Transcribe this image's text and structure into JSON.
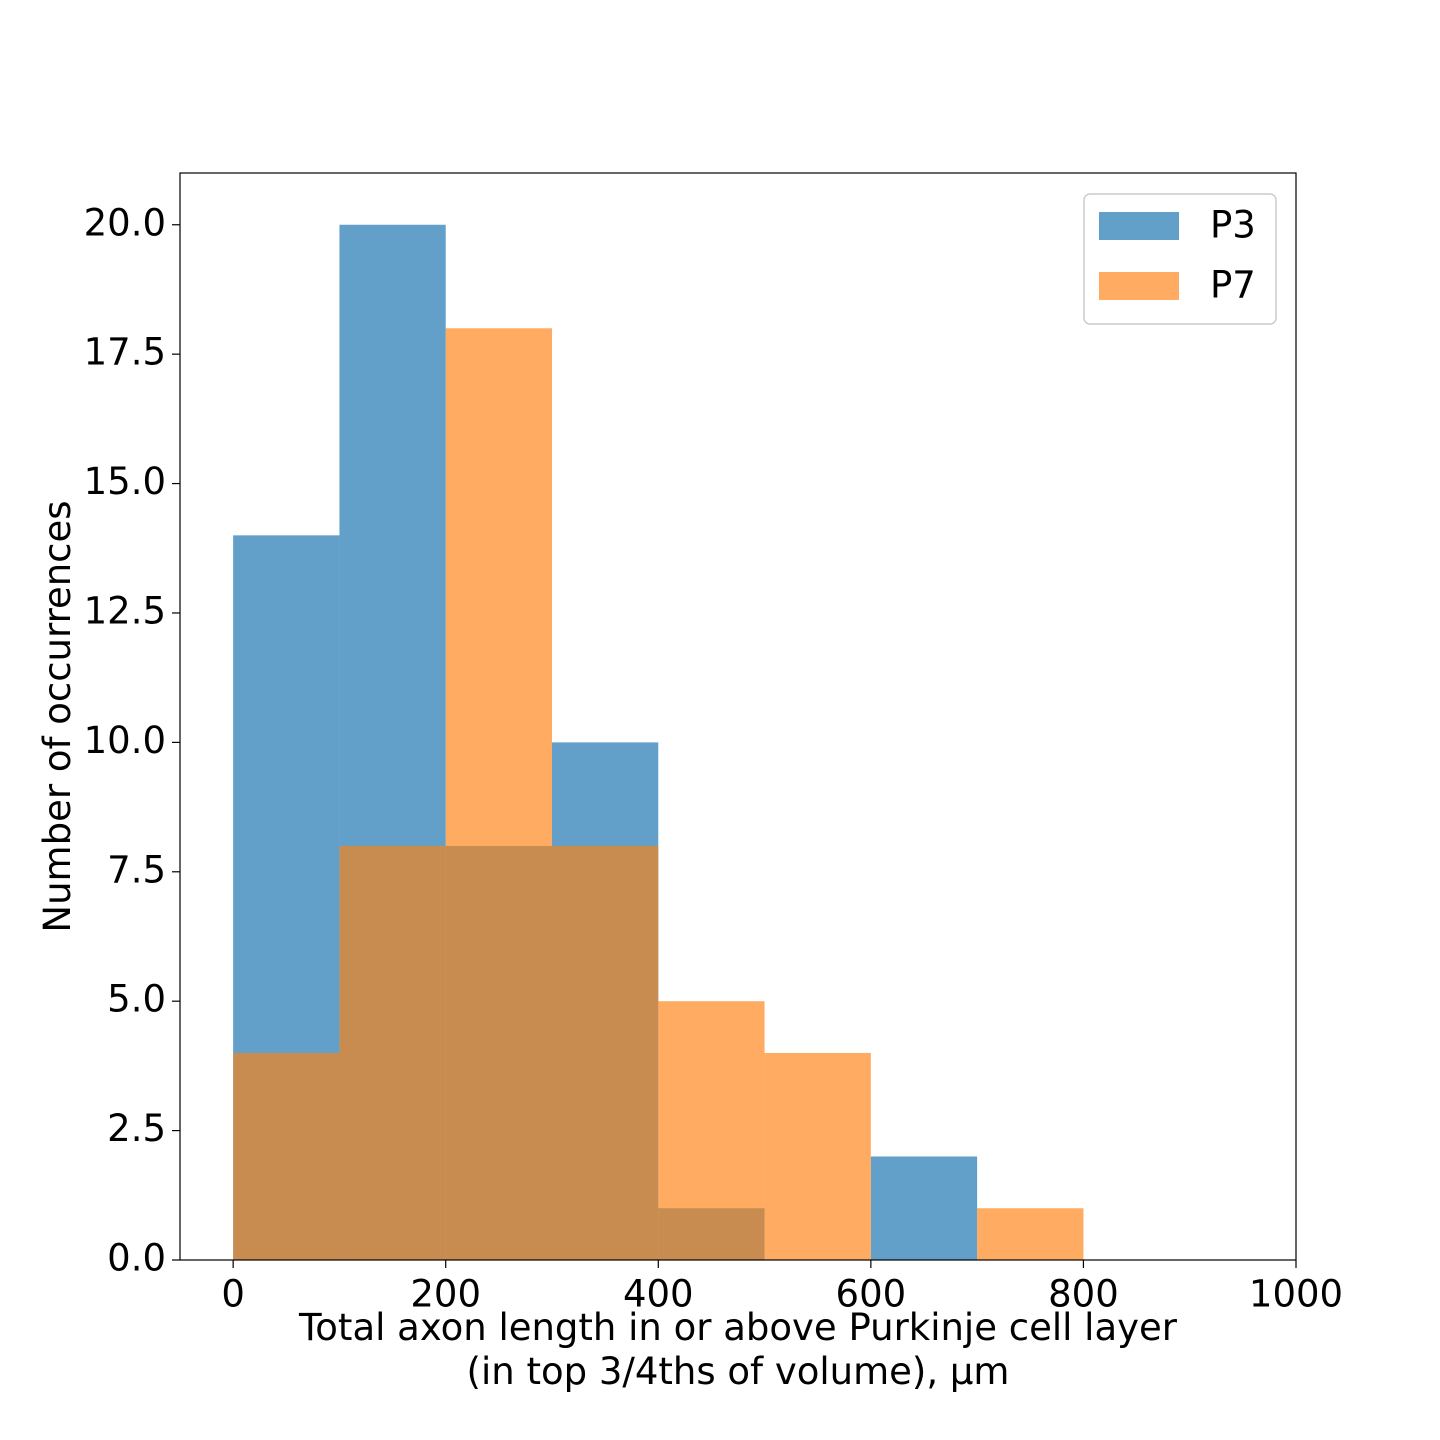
{
  "chart_data": {
    "type": "bar",
    "subtype": "overlapping-histogram",
    "xlabel_lines": [
      "Total axon length in or above Purkinje cell layer",
      "(in top 3/4ths of volume), μm"
    ],
    "ylabel": "Number of occurrences",
    "xlim": [
      -50,
      1000
    ],
    "ylim": [
      0,
      21
    ],
    "xticks": [
      0,
      200,
      400,
      600,
      800,
      1000
    ],
    "xtick_labels": [
      "0",
      "200",
      "400",
      "600",
      "800",
      "1000"
    ],
    "yticks": [
      0,
      2.5,
      5,
      7.5,
      10,
      12.5,
      15,
      17.5,
      20
    ],
    "ytick_labels": [
      "0.0",
      "2.5",
      "5.0",
      "7.5",
      "10.0",
      "12.5",
      "15.0",
      "17.5",
      "20.0"
    ],
    "bin_edges": [
      0,
      100,
      200,
      300,
      400,
      500,
      600,
      700,
      800
    ],
    "series": [
      {
        "name": "P3",
        "color": "#1f77b4",
        "opacity": 0.7,
        "values": [
          14,
          20,
          8,
          10,
          1,
          0,
          2,
          0
        ]
      },
      {
        "name": "P7",
        "color": "#ff7f0e",
        "opacity": 0.65,
        "values": [
          4,
          8,
          18,
          8,
          5,
          4,
          0,
          1
        ]
      }
    ],
    "legend_position": "top-right",
    "grid": false
  }
}
